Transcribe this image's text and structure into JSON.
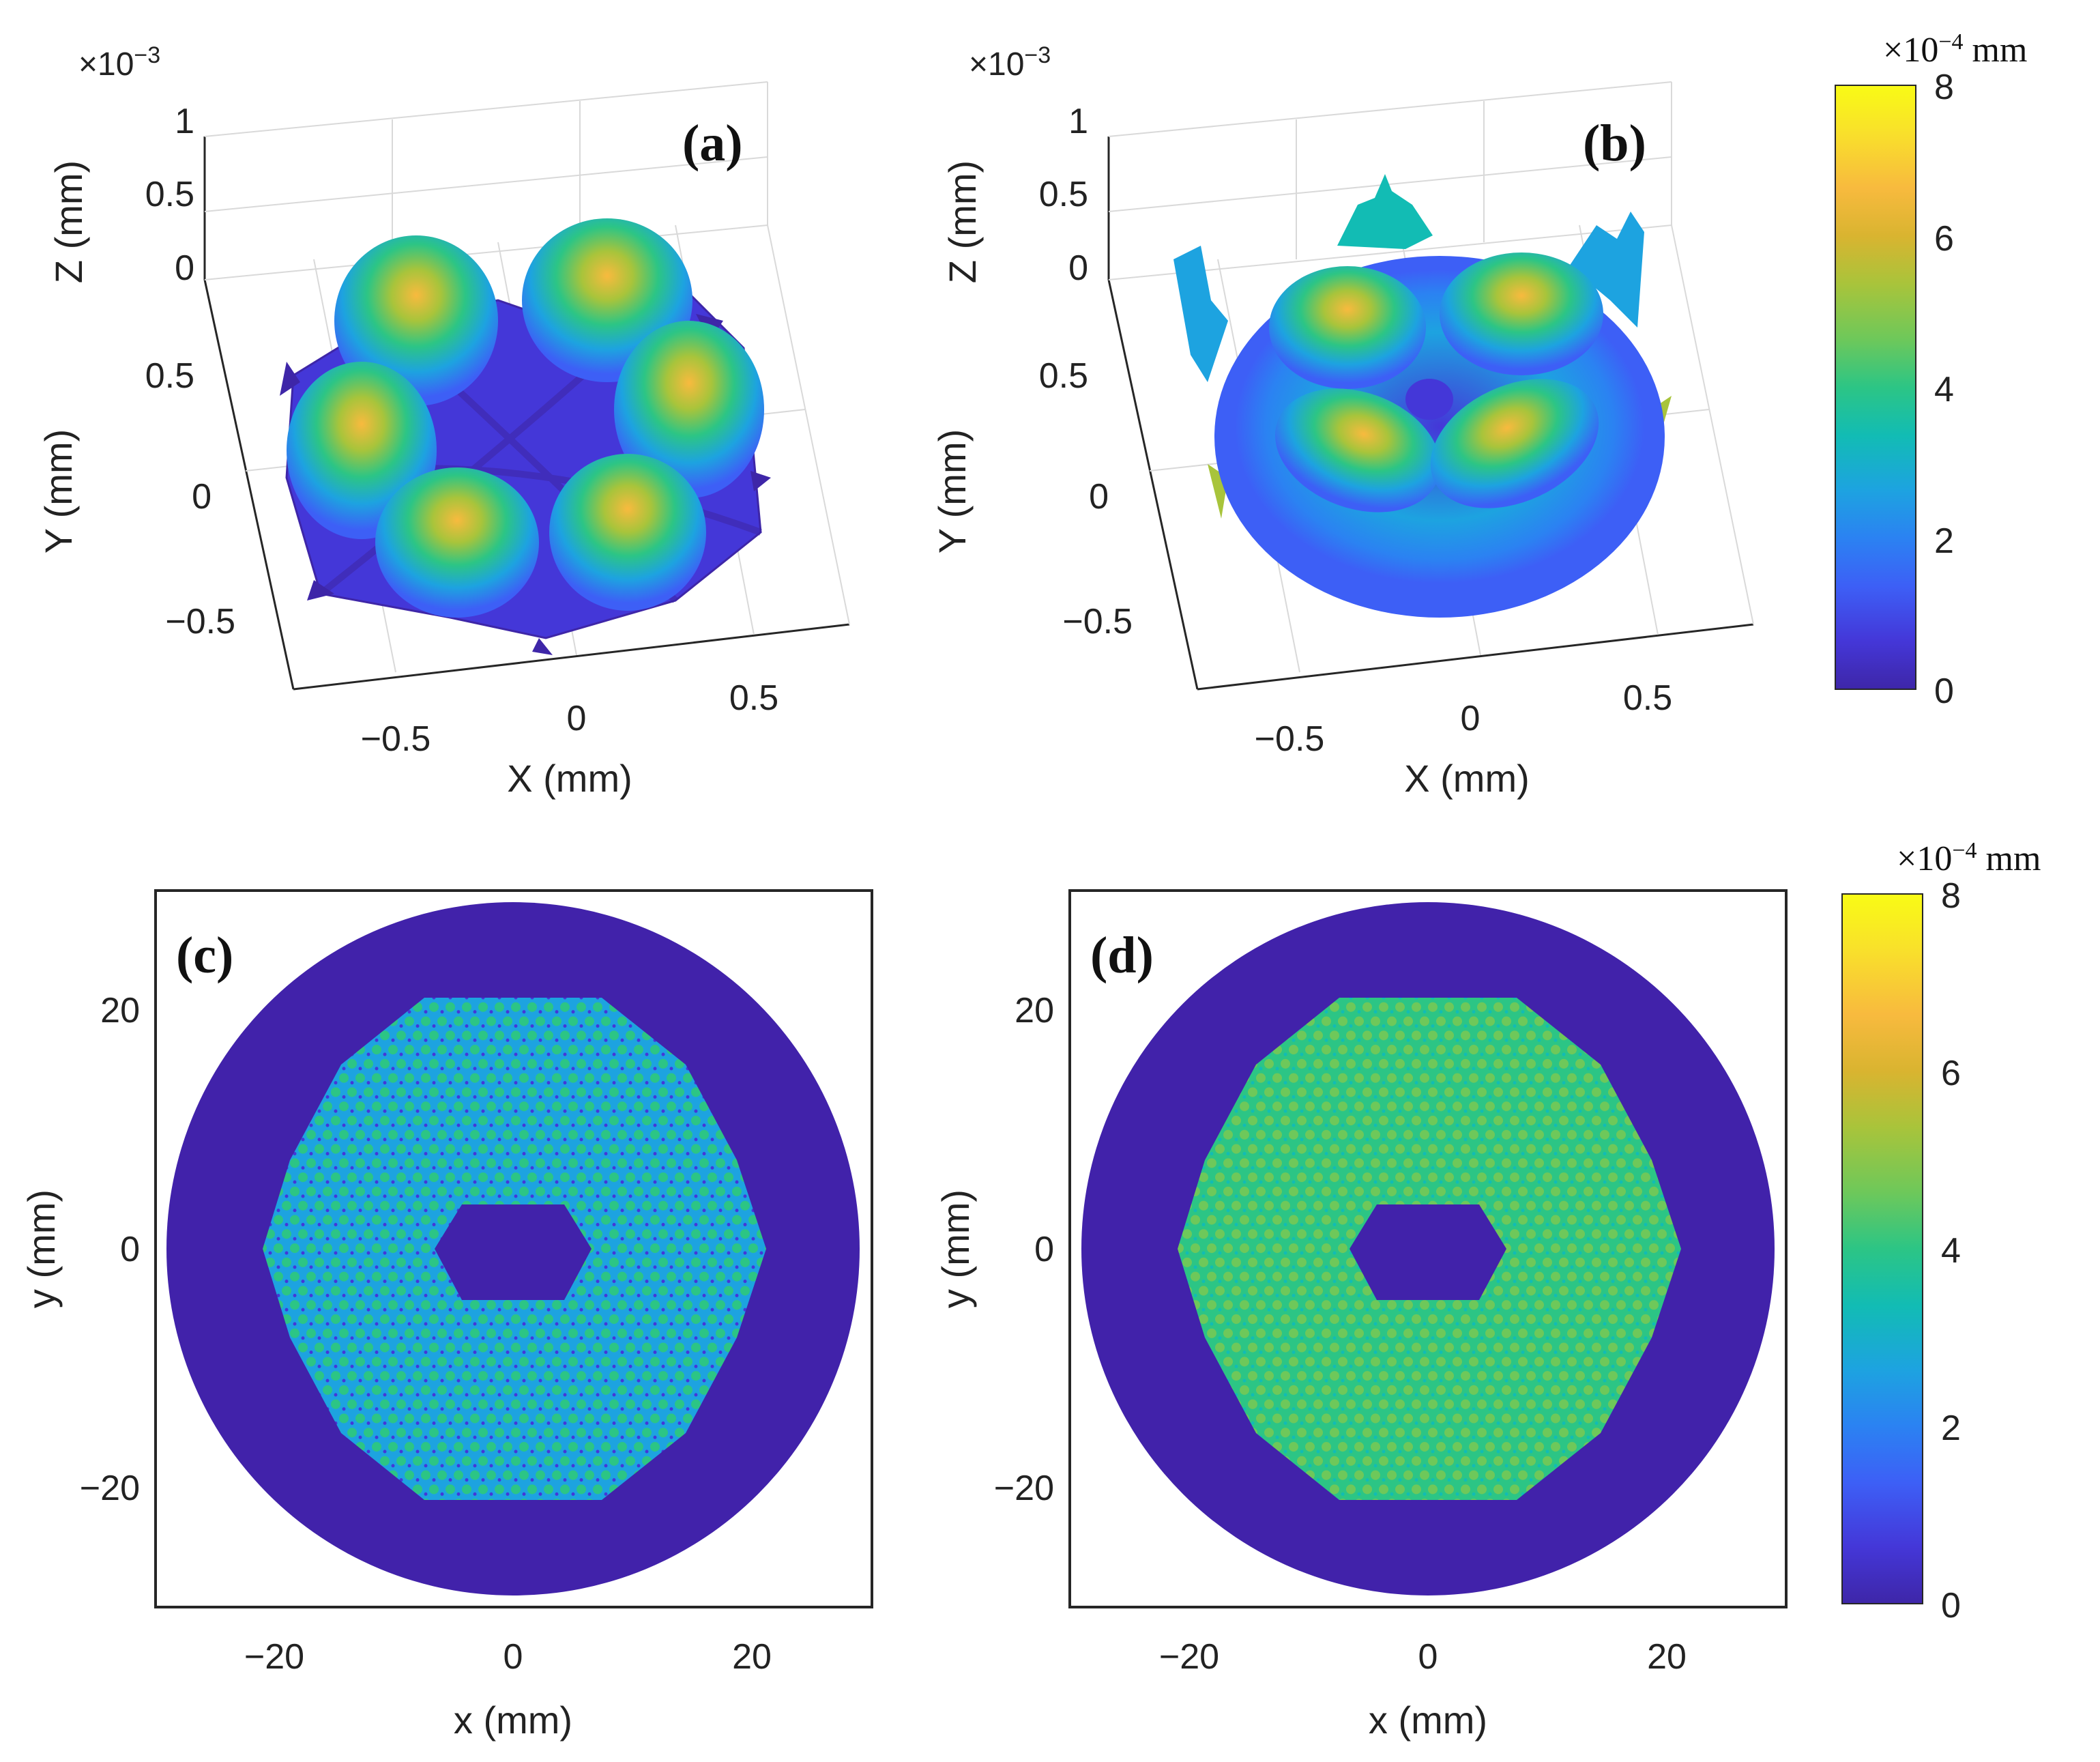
{
  "figure": {
    "colors": {
      "cmap": [
        "#3e26a8",
        "#4437d8",
        "#3d5ff6",
        "#2b82f2",
        "#1da3e0",
        "#12bcb4",
        "#2cc585",
        "#6ec85a",
        "#a8c43b",
        "#d9b430",
        "#f8ba3e",
        "#f9e02b",
        "#f9fb15"
      ],
      "background": "#ffffff",
      "axis": "#262626",
      "grid": "#d9d9d9"
    }
  },
  "chart_data": [
    {
      "id": "a",
      "type": "surface",
      "panel_label": "(a)",
      "xlabel": "X (mm)",
      "ylabel": "Y (mm)",
      "zlabel": "Z (mm)",
      "z_multiplier": "×10^−3",
      "x_ticks": [
        "−0.5",
        "0",
        "0.5"
      ],
      "y_ticks": [
        "0.5",
        "0",
        "−0.5"
      ],
      "z_ticks": [
        "1",
        "0.5",
        "0"
      ],
      "xlim": [
        -0.8,
        0.8
      ],
      "ylim": [
        -0.8,
        0.8
      ],
      "zlim": [
        0,
        0.001
      ],
      "peaks": 6,
      "peak_height": 0.00065,
      "description": "six-lobed surface with central dip"
    },
    {
      "id": "b",
      "type": "surface",
      "panel_label": "(b)",
      "xlabel": "X (mm)",
      "ylabel": "Y (mm)",
      "zlabel": "Z (mm)",
      "z_multiplier": "×10^−3",
      "x_ticks": [
        "−0.5",
        "0",
        "0.5"
      ],
      "y_ticks": [
        "0.5",
        "0",
        "−0.5"
      ],
      "z_ticks": [
        "1",
        "0.5",
        "0"
      ],
      "xlim": [
        -0.8,
        0.8
      ],
      "ylim": [
        -0.8,
        0.8
      ],
      "zlim": [
        0,
        0.001
      ],
      "peaks": 4,
      "peak_height": 0.00065,
      "description": "circular bowl surface with four lobes and jagged rim"
    },
    {
      "id": "c",
      "type": "heatmap",
      "panel_label": "(c)",
      "xlabel": "x (mm)",
      "ylabel": "y (mm)",
      "x_ticks": [
        "−20",
        "0",
        "20"
      ],
      "y_ticks": [
        "20",
        "0",
        "−20"
      ],
      "xlim": [
        -30,
        30
      ],
      "ylim": [
        -30,
        30
      ],
      "disk_radius": 29,
      "array_radius": 21,
      "center_hex_radius": 4.3,
      "pattern_mean_value": 0.0003
    },
    {
      "id": "d",
      "type": "heatmap",
      "panel_label": "(d)",
      "xlabel": "x (mm)",
      "ylabel": "y (mm)",
      "x_ticks": [
        "−20",
        "0",
        "20"
      ],
      "y_ticks": [
        "20",
        "0",
        "−20"
      ],
      "xlim": [
        -30,
        30
      ],
      "ylim": [
        -30,
        30
      ],
      "disk_radius": 29,
      "array_radius": 21,
      "center_hex_radius": 4.3,
      "pattern_mean_value": 0.00045
    }
  ],
  "colorbars": [
    {
      "id": "cb-top",
      "unit_prefix": "×10",
      "unit_exp": "−4",
      "unit_suffix": " mm",
      "range": [
        0,
        8
      ],
      "ticks": [
        "8",
        "6",
        "4",
        "2",
        "0"
      ]
    },
    {
      "id": "cb-bottom",
      "unit_prefix": "×10",
      "unit_exp": "−4",
      "unit_suffix": " mm",
      "range": [
        0,
        8
      ],
      "ticks": [
        "8",
        "6",
        "4",
        "2",
        "0"
      ]
    }
  ]
}
